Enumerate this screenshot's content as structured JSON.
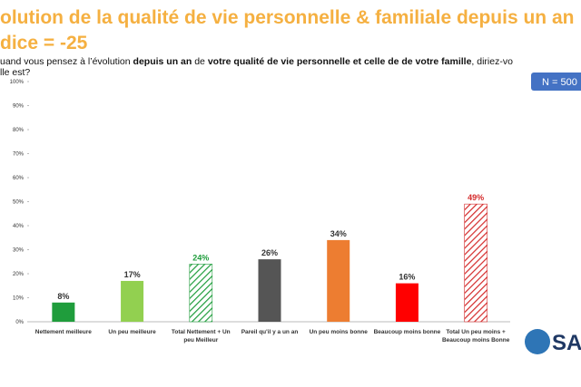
{
  "chart_data": {
    "type": "bar",
    "title": [
      "olution de la qualité de vie personnelle & familiale depuis un an :",
      "dice = -25"
    ],
    "subtitle": [
      [
        "uand vous pensez à l’évolution ",
        "depuis un an",
        " de ",
        "votre qualité de vie personnelle et celle de de votre famille",
        ", diriez-vo"
      ],
      [
        "lle est?"
      ]
    ],
    "badge": "N = 500",
    "logo": "SAG",
    "categories": [
      "Nettement meilleure",
      "Un peu meilleure",
      "Total Nettement + Un peu Meilleur",
      "Pareil qu'il y a un an",
      "Un peu moins bonne",
      "Beaucoup moins bonne",
      "Total Un peu moins + Beaucoup moins Bonne"
    ],
    "values": [
      8,
      17,
      24,
      26,
      34,
      16,
      49
    ],
    "value_labels": [
      "8%",
      "17%",
      "24%",
      "26%",
      "34%",
      "16%",
      "49%"
    ],
    "colors": [
      "#1f9d3c",
      "#92d050",
      "#1f9d3c",
      "#555555",
      "#ed7d31",
      "#ff0000",
      "#d42a2a"
    ],
    "hatched": [
      false,
      false,
      true,
      false,
      false,
      false,
      true
    ],
    "ylim": [
      0,
      100
    ],
    "yticks": [
      {
        "value": 0,
        "label": "0%"
      },
      {
        "value": 10,
        "label": "10%"
      },
      {
        "value": 20,
        "label": "20%"
      },
      {
        "value": 30,
        "label": "30%"
      },
      {
        "value": 40,
        "label": "40%"
      },
      {
        "value": 50,
        "label": "50%"
      },
      {
        "value": 60,
        "label": "60%"
      },
      {
        "value": 70,
        "label": "70%"
      },
      {
        "value": 80,
        "label": "80%"
      },
      {
        "value": 90,
        "label": "90%"
      },
      {
        "value": 100,
        "label": "100%"
      }
    ]
  }
}
